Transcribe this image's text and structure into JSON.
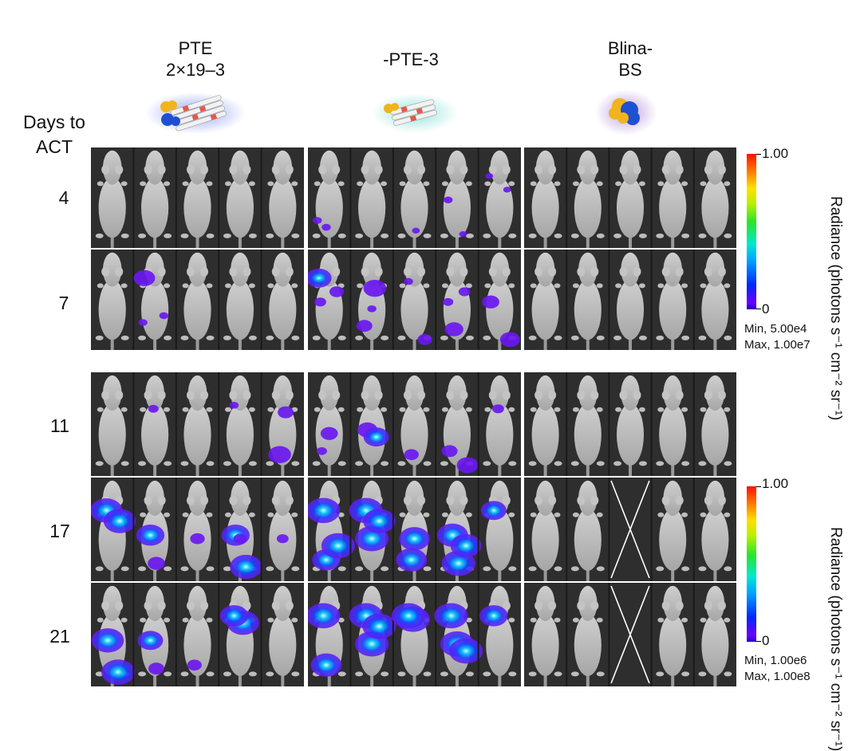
{
  "groups": [
    {
      "line1": "PTE",
      "line2": "2×19–3",
      "color": "#1b2f86"
    },
    {
      "line1": "-PTE-3",
      "line2": "",
      "color": "#17a7a6"
    },
    {
      "line1": "Blina-",
      "line2": "BS",
      "color": "#6a2fa0"
    }
  ],
  "days_header": {
    "line1": "Days to",
    "line2": "ACT"
  },
  "days": [
    "4",
    "7",
    "11",
    "17",
    "21"
  ],
  "colorbar_top": {
    "max_label": "1.00",
    "min_label": "0",
    "title": "Radiance (photons s⁻¹ cm⁻² sr⁻¹)",
    "min_note": "Min, 5.00e4",
    "max_note": "Max, 1.00e7"
  },
  "colorbar_bottom": {
    "max_label": "1.00",
    "min_label": "0",
    "title": "Radiance (photons s⁻¹ cm⁻² sr⁻¹)",
    "min_note": "Min, 1.00e6",
    "max_note": "Max, 1.00e8"
  },
  "icons": [
    "pte-2x19-3-molecule-icon",
    "pte-3-molecule-icon",
    "blina-bs-molecule-icon"
  ],
  "icon_colors": {
    "antibody_yellow": "#f0b41e",
    "antibody_blue": "#1e50d2",
    "glow_blue": "#3c5ae6",
    "glow_teal": "#50d2c8",
    "glow_purple": "#8c50c8"
  },
  "signals": {
    "0_0": [
      [
        0,
        0,
        0
      ]
    ],
    "0_1": [
      [
        0,
        0.1,
        0.1
      ],
      [
        0,
        0.4,
        0.1
      ],
      [
        2,
        0.55,
        0.05
      ],
      [
        3,
        0.2,
        0.1
      ],
      [
        3,
        0.7,
        0.05
      ],
      [
        4,
        0.15,
        0.05
      ],
      [
        4,
        0.75,
        0.05
      ]
    ],
    "1_0": [
      [
        1,
        0.1,
        0.1
      ],
      [
        1,
        0.15,
        0.55
      ],
      [
        1,
        0.8,
        0.1
      ]
    ],
    "1_1": [
      [
        0,
        0.2,
        0.2
      ],
      [
        0,
        0.15,
        0.7
      ],
      [
        0,
        0.75,
        0.3
      ],
      [
        1,
        0.25,
        0.35
      ],
      [
        1,
        0.6,
        0.6
      ],
      [
        1,
        0.5,
        0.1
      ],
      [
        2,
        0.3,
        0.1
      ],
      [
        2,
        0.85,
        0.3
      ],
      [
        3,
        0.4,
        0.45
      ],
      [
        3,
        0.2,
        0.15
      ],
      [
        3,
        0.75,
        0.2
      ],
      [
        4,
        0.2,
        0.4
      ],
      [
        4,
        0.85,
        0.5
      ]
    ],
    "1_2": [
      [
        0,
        0,
        0
      ]
    ],
    "2_0": [
      [
        1,
        0.45,
        0.15
      ],
      [
        4,
        0.4,
        0.6
      ],
      [
        4,
        0.6,
        0.35
      ],
      [
        3,
        0.3,
        0.1
      ]
    ],
    "2_1": [
      [
        0,
        0.5,
        0.4
      ],
      [
        0,
        0.25,
        0.15
      ],
      [
        1,
        0.35,
        0.5
      ],
      [
        1,
        0.65,
        0.7
      ],
      [
        2,
        0.4,
        0.3
      ],
      [
        3,
        0.25,
        0.35
      ],
      [
        3,
        0.85,
        0.55
      ],
      [
        4,
        0.45,
        0.2
      ]
    ],
    "2_2": [
      [
        0,
        0,
        0
      ]
    ],
    "3_0": [
      [
        0,
        0.3,
        0.95
      ],
      [
        0,
        0.75,
        0.95
      ],
      [
        1,
        0.55,
        0.4
      ],
      [
        1,
        0.35,
        0.8
      ],
      [
        2,
        0.5,
        0.3
      ],
      [
        3,
        0.35,
        0.8
      ],
      [
        3,
        0.7,
        0.95
      ],
      [
        3,
        0.5,
        0.25
      ],
      [
        4,
        0.5,
        0.2
      ]
    ],
    "3_1": [
      [
        0,
        0.4,
        0.8
      ],
      [
        0,
        0.3,
        1.0
      ],
      [
        0,
        0.8,
        1.0
      ],
      [
        1,
        0.5,
        1.0
      ],
      [
        1,
        0.3,
        1.0
      ],
      [
        1,
        0.75,
        0.95
      ],
      [
        2,
        0.5,
        0.9
      ],
      [
        2,
        0.4,
        0.9
      ],
      [
        3,
        0.55,
        1.0
      ],
      [
        3,
        0.35,
        0.9
      ],
      [
        3,
        0.8,
        0.9
      ],
      [
        4,
        0.3,
        0.7
      ]
    ],
    "3_2": [
      [
        0,
        0,
        0
      ]
    ],
    "4_0": [
      [
        0,
        0.35,
        0.95
      ],
      [
        0,
        0.7,
        1.0
      ],
      [
        1,
        0.55,
        0.35
      ],
      [
        1,
        0.35,
        0.7
      ],
      [
        2,
        0.4,
        0.3
      ],
      [
        3,
        0.45,
        0.4
      ],
      [
        3,
        0.6,
        0.95
      ],
      [
        3,
        0.3,
        0.8
      ]
    ],
    "4_1": [
      [
        0,
        0.4,
        0.9
      ],
      [
        0,
        0.3,
        1.0
      ],
      [
        1,
        0.5,
        1.0
      ],
      [
        1,
        0.3,
        1.0
      ],
      [
        1,
        0.75,
        1.0
      ],
      [
        2,
        0.45,
        1.0
      ],
      [
        2,
        0.3,
        1.0
      ],
      [
        3,
        0.5,
        1.0
      ],
      [
        3,
        0.3,
        1.0
      ],
      [
        3,
        0.8,
        1.0
      ],
      [
        4,
        0.3,
        0.8
      ]
    ],
    "4_2": [
      [
        0,
        0,
        0
      ]
    ]
  },
  "excluded": [
    "3_2_2",
    "4_2_2"
  ]
}
